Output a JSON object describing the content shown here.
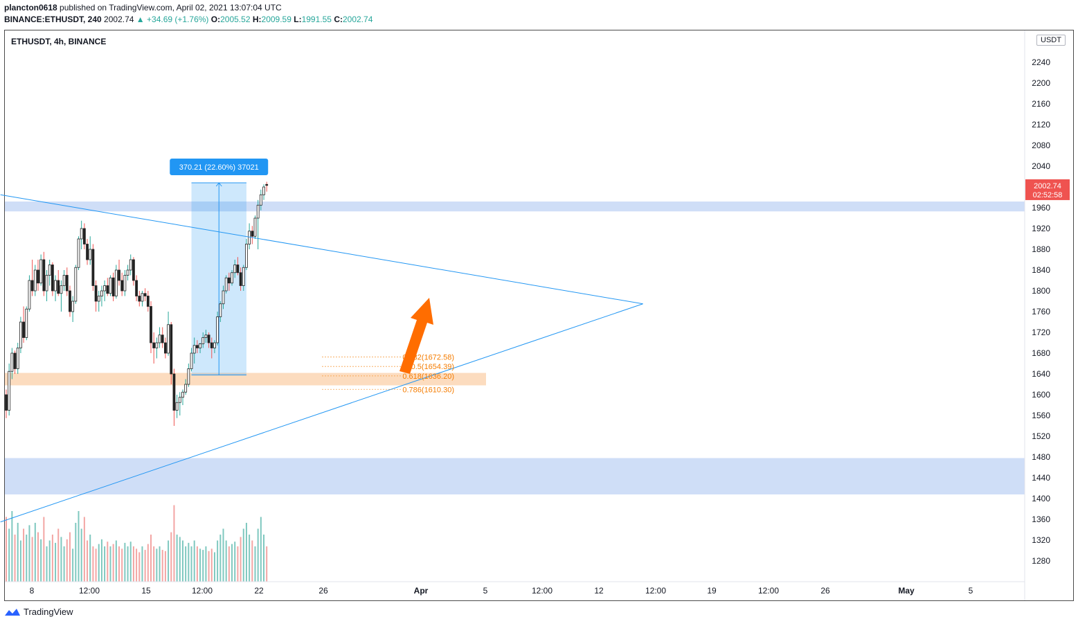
{
  "header": {
    "publisher": "plancton0618",
    "published_text": "published on TradingView.com, April 02, 2021 13:07:04 UTC",
    "symbol_interval": "BINANCE:ETHUSDT, 240",
    "last": "2002.74",
    "change": "+34.69 (+1.76%)",
    "o_label": "O:",
    "o": "2005.52",
    "h_label": "H:",
    "h": "2009.59",
    "l_label": "L:",
    "l": "1991.55",
    "c_label": "C:",
    "c": "2002.74"
  },
  "chart_title": "ETHUSDT, 4h, BINANCE",
  "currency": "USDT",
  "footer_brand": "TradingView",
  "colors": {
    "up": "#26a69a",
    "down": "#ef5350",
    "trendline": "#2196f3",
    "zone_blue": "#c7d8f6",
    "zone_orange": "#fbd6b4",
    "fib": "#f57c00",
    "arrow": "#ff6d00",
    "price_tag": "#ef5350"
  },
  "chart_data": {
    "type": "candlestick",
    "y_axis": {
      "min": 1245,
      "max": 2283,
      "ticks": [
        1280,
        1320,
        1360,
        1400,
        1440,
        1480,
        1520,
        1560,
        1600,
        1640,
        1680,
        1720,
        1760,
        1800,
        1840,
        1880,
        1920,
        1960,
        2000,
        2040,
        2080,
        2120,
        2160,
        2200,
        2240
      ]
    },
    "x_ticks": [
      "8",
      "12:00",
      "15",
      "12:00",
      "22",
      "26",
      "Apr",
      "5",
      "12:00",
      "12",
      "12:00",
      "19",
      "12:00",
      "26",
      "May",
      "5"
    ],
    "last_price": "2002.74",
    "countdown": "02:52:58",
    "candles_ohlc": [
      [
        1600,
        1610,
        1555,
        1570
      ],
      [
        1570,
        1660,
        1560,
        1645
      ],
      [
        1645,
        1690,
        1630,
        1680
      ],
      [
        1680,
        1685,
        1640,
        1650
      ],
      [
        1650,
        1700,
        1640,
        1690
      ],
      [
        1690,
        1750,
        1680,
        1740
      ],
      [
        1740,
        1770,
        1700,
        1710
      ],
      [
        1710,
        1770,
        1705,
        1765
      ],
      [
        1765,
        1830,
        1760,
        1820
      ],
      [
        1820,
        1860,
        1790,
        1800
      ],
      [
        1800,
        1850,
        1790,
        1840
      ],
      [
        1840,
        1860,
        1800,
        1815
      ],
      [
        1815,
        1870,
        1810,
        1860
      ],
      [
        1860,
        1875,
        1790,
        1800
      ],
      [
        1800,
        1840,
        1780,
        1830
      ],
      [
        1830,
        1860,
        1810,
        1850
      ],
      [
        1850,
        1855,
        1790,
        1800
      ],
      [
        1800,
        1830,
        1780,
        1820
      ],
      [
        1820,
        1840,
        1790,
        1795
      ],
      [
        1795,
        1820,
        1760,
        1810
      ],
      [
        1810,
        1840,
        1800,
        1830
      ],
      [
        1830,
        1845,
        1790,
        1800
      ],
      [
        1800,
        1810,
        1750,
        1760
      ],
      [
        1760,
        1790,
        1740,
        1780
      ],
      [
        1780,
        1850,
        1775,
        1845
      ],
      [
        1845,
        1905,
        1840,
        1900
      ],
      [
        1900,
        1935,
        1880,
        1920
      ],
      [
        1920,
        1930,
        1880,
        1890
      ],
      [
        1890,
        1900,
        1850,
        1860
      ],
      [
        1860,
        1905,
        1850,
        1880
      ],
      [
        1880,
        1890,
        1800,
        1810
      ],
      [
        1810,
        1820,
        1760,
        1780
      ],
      [
        1780,
        1800,
        1760,
        1790
      ],
      [
        1790,
        1810,
        1770,
        1800
      ],
      [
        1800,
        1820,
        1780,
        1810
      ],
      [
        1810,
        1825,
        1790,
        1795
      ],
      [
        1795,
        1830,
        1790,
        1825
      ],
      [
        1825,
        1835,
        1780,
        1790
      ],
      [
        1790,
        1850,
        1785,
        1840
      ],
      [
        1840,
        1860,
        1810,
        1820
      ],
      [
        1820,
        1835,
        1790,
        1800
      ],
      [
        1800,
        1840,
        1790,
        1830
      ],
      [
        1830,
        1850,
        1820,
        1840
      ],
      [
        1840,
        1870,
        1830,
        1860
      ],
      [
        1860,
        1865,
        1810,
        1820
      ],
      [
        1820,
        1830,
        1780,
        1790
      ],
      [
        1790,
        1800,
        1770,
        1780
      ],
      [
        1780,
        1800,
        1770,
        1795
      ],
      [
        1795,
        1805,
        1780,
        1790
      ],
      [
        1790,
        1800,
        1760,
        1770
      ],
      [
        1770,
        1780,
        1680,
        1700
      ],
      [
        1700,
        1720,
        1660,
        1690
      ],
      [
        1690,
        1710,
        1670,
        1700
      ],
      [
        1700,
        1730,
        1690,
        1715
      ],
      [
        1715,
        1730,
        1690,
        1700
      ],
      [
        1700,
        1710,
        1670,
        1680
      ],
      [
        1680,
        1760,
        1675,
        1735
      ],
      [
        1735,
        1740,
        1620,
        1640
      ],
      [
        1640,
        1650,
        1540,
        1570
      ],
      [
        1570,
        1600,
        1555,
        1585
      ],
      [
        1585,
        1605,
        1560,
        1595
      ],
      [
        1595,
        1610,
        1580,
        1605
      ],
      [
        1605,
        1630,
        1600,
        1620
      ],
      [
        1620,
        1660,
        1615,
        1650
      ],
      [
        1650,
        1690,
        1645,
        1680
      ],
      [
        1680,
        1710,
        1660,
        1695
      ],
      [
        1695,
        1705,
        1680,
        1690
      ],
      [
        1690,
        1700,
        1680,
        1698
      ],
      [
        1698,
        1720,
        1690,
        1710
      ],
      [
        1710,
        1725,
        1700,
        1715
      ],
      [
        1715,
        1720,
        1690,
        1700
      ],
      [
        1700,
        1710,
        1670,
        1690
      ],
      [
        1690,
        1705,
        1680,
        1700
      ],
      [
        1700,
        1760,
        1695,
        1750
      ],
      [
        1750,
        1780,
        1740,
        1775
      ],
      [
        1775,
        1810,
        1765,
        1800
      ],
      [
        1800,
        1830,
        1795,
        1825
      ],
      [
        1825,
        1835,
        1800,
        1815
      ],
      [
        1815,
        1840,
        1810,
        1835
      ],
      [
        1835,
        1860,
        1825,
        1850
      ],
      [
        1850,
        1865,
        1830,
        1835
      ],
      [
        1835,
        1845,
        1800,
        1810
      ],
      [
        1810,
        1850,
        1800,
        1845
      ],
      [
        1845,
        1900,
        1840,
        1890
      ],
      [
        1890,
        1930,
        1880,
        1915
      ],
      [
        1915,
        1925,
        1890,
        1905
      ],
      [
        1905,
        1945,
        1900,
        1940
      ],
      [
        1940,
        1975,
        1880,
        1965
      ],
      [
        1965,
        1995,
        1955,
        1985
      ],
      [
        1985,
        2005,
        1975,
        2000
      ],
      [
        2005,
        2010,
        1991,
        2003
      ]
    ],
    "volume": [
      0.55,
      0.45,
      0.6,
      0.4,
      0.5,
      0.35,
      0.45,
      0.4,
      0.48,
      0.38,
      0.5,
      0.42,
      0.36,
      0.55,
      0.3,
      0.35,
      0.4,
      0.33,
      0.45,
      0.38,
      0.3,
      0.36,
      0.42,
      0.28,
      0.5,
      0.6,
      0.45,
      0.55,
      0.35,
      0.4,
      0.3,
      0.28,
      0.32,
      0.36,
      0.3,
      0.34,
      0.3,
      0.32,
      0.35,
      0.3,
      0.28,
      0.33,
      0.3,
      0.34,
      0.3,
      0.28,
      0.25,
      0.3,
      0.27,
      0.32,
      0.4,
      0.3,
      0.28,
      0.3,
      0.27,
      0.26,
      0.35,
      0.42,
      0.65,
      0.4,
      0.38,
      0.35,
      0.3,
      0.33,
      0.3,
      0.35,
      0.3,
      0.28,
      0.27,
      0.3,
      0.26,
      0.28,
      0.25,
      0.35,
      0.4,
      0.45,
      0.35,
      0.3,
      0.32,
      0.34,
      0.3,
      0.38,
      0.45,
      0.5,
      0.4,
      0.35,
      0.3,
      0.45,
      0.55,
      0.4,
      0.3
    ],
    "trendlines": [
      {
        "from": {
          "bar": -2,
          "price": 1985
        },
        "to": {
          "bar": 220,
          "price": 1775
        }
      },
      {
        "from": {
          "bar": -2,
          "price": 1355
        },
        "to": {
          "bar": 220,
          "price": 1775
        }
      }
    ],
    "zones": [
      {
        "low": 1953,
        "high": 1972,
        "color": "blue"
      },
      {
        "low": 1618,
        "high": 1642,
        "color": "orange"
      },
      {
        "low": 1408,
        "high": 1478,
        "color": "blue"
      }
    ],
    "measure": {
      "label": "370.21 (22.60%) 37021",
      "from_bar": 64,
      "to_bar": 83,
      "low": 1638,
      "high": 2008
    },
    "fib_labels": [
      "0.382(1672.58)",
      "0.5(1654.39)",
      "0.618(1636.20)",
      "0.786(1610.30)"
    ],
    "fib_prices": [
      1672.58,
      1654.39,
      1636.2,
      1610.3
    ]
  }
}
